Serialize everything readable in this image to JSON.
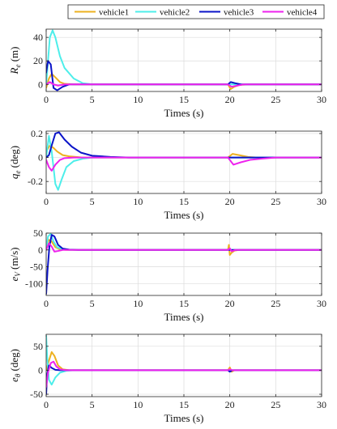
{
  "legend": [
    {
      "name": "vehicle1",
      "color": "#EDB120"
    },
    {
      "name": "vehicle2",
      "color": "#4DEEEA"
    },
    {
      "name": "vehicle3",
      "color": "#0B14C8"
    },
    {
      "name": "vehicle4",
      "color": "#EE22EE"
    }
  ],
  "chart_data": [
    {
      "type": "line",
      "ylabel_main": "R",
      "ylabel_sub": "e",
      "ylabel_unit": " (m)",
      "xlabel": "Times (s)",
      "xlim": [
        0,
        30
      ],
      "ylim": [
        -6,
        47
      ],
      "xticks": [
        "0",
        "5",
        "10",
        "15",
        "20",
        "25",
        "30"
      ],
      "xtick_values": [
        0,
        5,
        10,
        15,
        20,
        25,
        30
      ],
      "yticks": [
        "0",
        "20",
        "40"
      ],
      "ytick_values": [
        0,
        20,
        40
      ],
      "grid": true,
      "series": [
        {
          "name": "vehicle1",
          "color": "#EDB120",
          "x": [
            0,
            0.3,
            0.6,
            1.0,
            1.5,
            2.0,
            3,
            4,
            19.8,
            20.1,
            20.5,
            21,
            22,
            30
          ],
          "y": [
            -3,
            5,
            9,
            6,
            2,
            0.5,
            0,
            0,
            0,
            -4,
            -2,
            -0.5,
            0,
            0
          ]
        },
        {
          "name": "vehicle2",
          "color": "#4DEEEA",
          "x": [
            0,
            0.2,
            0.4,
            0.7,
            1.0,
            1.5,
            2,
            3,
            4,
            5,
            30
          ],
          "y": [
            0,
            20,
            40,
            46,
            40,
            24,
            14,
            5,
            1,
            0,
            0
          ]
        },
        {
          "name": "vehicle3",
          "color": "#0B14C8",
          "x": [
            0,
            0.2,
            0.5,
            0.8,
            1.2,
            1.8,
            2.5,
            4,
            19.8,
            20.1,
            20.6,
            21.2,
            30
          ],
          "y": [
            10,
            20,
            17,
            -3,
            -5,
            -2,
            0,
            0,
            0,
            2,
            1,
            0,
            0
          ]
        },
        {
          "name": "vehicle4",
          "color": "#EE22EE",
          "x": [
            0,
            0.4,
            0.8,
            1.3,
            2,
            3,
            19.8,
            20.2,
            20.8,
            21.5,
            30
          ],
          "y": [
            0,
            2,
            0,
            -1,
            0,
            0,
            0,
            -2,
            -1,
            0,
            0
          ]
        }
      ]
    },
    {
      "type": "line",
      "ylabel_main": "q",
      "ylabel_sub": "e",
      "ylabel_unit": " (deg)",
      "xlabel": "Times (s)",
      "xlim": [
        0,
        30
      ],
      "ylim": [
        -0.3,
        0.22
      ],
      "xticks": [
        "0",
        "5",
        "10",
        "15",
        "20",
        "25",
        "30"
      ],
      "xtick_values": [
        0,
        5,
        10,
        15,
        20,
        25,
        30
      ],
      "yticks": [
        "-0.2",
        "0",
        "0.2"
      ],
      "ytick_values": [
        -0.2,
        0,
        0.2
      ],
      "grid": true,
      "series": [
        {
          "name": "vehicle1",
          "color": "#EDB120",
          "x": [
            0,
            0.4,
            0.8,
            1.2,
            1.8,
            2.5,
            4,
            19.8,
            20.3,
            21,
            22,
            23,
            30
          ],
          "y": [
            0.05,
            0.1,
            0.08,
            0.05,
            0.02,
            0.01,
            0,
            0,
            0.03,
            0.02,
            0.005,
            0,
            0
          ]
        },
        {
          "name": "vehicle2",
          "color": "#4DEEEA",
          "x": [
            0,
            0.3,
            0.6,
            1.0,
            1.3,
            1.7,
            2.2,
            3,
            4,
            5,
            6,
            30
          ],
          "y": [
            0,
            0.18,
            0.05,
            -0.22,
            -0.27,
            -0.18,
            -0.08,
            -0.03,
            -0.01,
            0,
            0,
            0
          ]
        },
        {
          "name": "vehicle3",
          "color": "#0B14C8",
          "x": [
            0,
            0.3,
            0.6,
            1.0,
            1.4,
            2,
            2.8,
            3.8,
            5,
            7,
            9,
            30
          ],
          "y": [
            0,
            0.02,
            0.1,
            0.2,
            0.21,
            0.15,
            0.09,
            0.04,
            0.015,
            0.005,
            0,
            0
          ]
        },
        {
          "name": "vehicle4",
          "color": "#EE22EE",
          "x": [
            0,
            0.3,
            0.6,
            1.0,
            1.5,
            2,
            3,
            19.8,
            20.4,
            21.2,
            22.2,
            23.5,
            25,
            30
          ],
          "y": [
            -0.02,
            -0.08,
            -0.11,
            -0.06,
            -0.02,
            -0.005,
            0,
            0,
            -0.06,
            -0.04,
            -0.02,
            -0.01,
            0,
            0
          ]
        }
      ]
    },
    {
      "type": "line",
      "ylabel_main": "e",
      "ylabel_sub": "V",
      "ylabel_unit": " (m/s)",
      "xlabel": "Times (s)",
      "xlim": [
        0,
        30
      ],
      "ylim": [
        -135,
        50
      ],
      "xticks": [
        "0",
        "5",
        "10",
        "15",
        "20",
        "25",
        "30"
      ],
      "xtick_values": [
        0,
        5,
        10,
        15,
        20,
        25,
        30
      ],
      "yticks": [
        "-100",
        "-50",
        "0",
        "50"
      ],
      "ytick_values": [
        -100,
        -50,
        0,
        50
      ],
      "grid": true,
      "series": [
        {
          "name": "vehicle1",
          "color": "#EDB120",
          "x": [
            0,
            0.3,
            0.6,
            1.0,
            1.5,
            2.2,
            3,
            19.8,
            19.9,
            20.0,
            20.2,
            20.5,
            21,
            30
          ],
          "y": [
            10,
            30,
            25,
            8,
            2,
            0,
            0,
            0,
            15,
            -15,
            -8,
            -2,
            0,
            0
          ]
        },
        {
          "name": "vehicle2",
          "color": "#4DEEEA",
          "x": [
            0,
            0.2,
            0.5,
            0.8,
            1.2,
            1.8,
            2.5,
            30
          ],
          "y": [
            0,
            40,
            48,
            25,
            8,
            2,
            0,
            0
          ]
        },
        {
          "name": "vehicle3",
          "color": "#0B14C8",
          "x": [
            0,
            0.15,
            0.35,
            0.6,
            0.9,
            1.3,
            1.8,
            2.5,
            3.5,
            30
          ],
          "y": [
            -130,
            -60,
            10,
            45,
            40,
            15,
            4,
            1,
            0,
            0
          ]
        },
        {
          "name": "vehicle4",
          "color": "#EE22EE",
          "x": [
            0,
            0.3,
            0.6,
            0.9,
            1.3,
            1.8,
            2.5,
            19.8,
            20.0,
            20.2,
            20.6,
            30
          ],
          "y": [
            0,
            20,
            10,
            -5,
            -3,
            0,
            0,
            0,
            5,
            -4,
            0,
            0
          ]
        }
      ]
    },
    {
      "type": "line",
      "ylabel_main": "e",
      "ylabel_sub": "θ",
      "ylabel_unit": " (deg)",
      "xlabel": "Times (s)",
      "xlim": [
        0,
        30
      ],
      "ylim": [
        -55,
        75
      ],
      "xticks": [
        "0",
        "5",
        "10",
        "15",
        "20",
        "25",
        "30"
      ],
      "xtick_values": [
        0,
        5,
        10,
        15,
        20,
        25,
        30
      ],
      "yticks": [
        "-50",
        "0",
        "50"
      ],
      "ytick_values": [
        -50,
        0,
        50
      ],
      "grid": true,
      "series": [
        {
          "name": "vehicle1",
          "color": "#EDB120",
          "x": [
            0,
            0.3,
            0.6,
            0.9,
            1.3,
            1.8,
            2.5,
            3.5,
            19.8,
            20.0,
            20.2,
            20.5,
            30
          ],
          "y": [
            0,
            20,
            38,
            30,
            10,
            2,
            0,
            0,
            0,
            6,
            -3,
            0,
            0
          ]
        },
        {
          "name": "vehicle2",
          "color": "#4DEEEA",
          "x": [
            0,
            0.1,
            0.3,
            0.6,
            1.0,
            1.5,
            2.2,
            3,
            30
          ],
          "y": [
            72,
            30,
            -20,
            -30,
            -15,
            -5,
            -1,
            0,
            0
          ]
        },
        {
          "name": "vehicle3",
          "color": "#0B14C8",
          "x": [
            0,
            0.1,
            0.3,
            0.6,
            1.0,
            1.5,
            2.2,
            19.8,
            20.0,
            20.3,
            30
          ],
          "y": [
            -50,
            -10,
            10,
            5,
            1,
            0,
            0,
            0,
            -3,
            0,
            0
          ]
        },
        {
          "name": "vehicle4",
          "color": "#EE22EE",
          "x": [
            0,
            0.2,
            0.5,
            0.8,
            1.1,
            1.5,
            2.1,
            2.8,
            19.8,
            20.0,
            20.3,
            30
          ],
          "y": [
            -35,
            -5,
            15,
            18,
            8,
            2,
            0,
            0,
            0,
            2,
            0,
            0
          ]
        }
      ]
    }
  ]
}
